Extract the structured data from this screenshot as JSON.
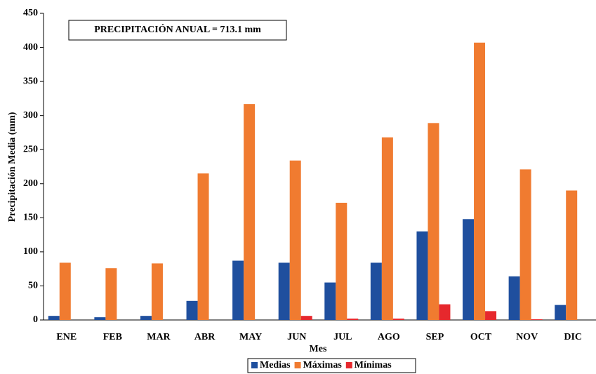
{
  "chart_data": {
    "type": "bar",
    "annotation": "PRECIPITACIÓN ANUAL = 713.1 mm",
    "x_label": "Mes",
    "y_label": "Precipitación Media (mm)",
    "categories": [
      "ENE",
      "FEB",
      "MAR",
      "ABR",
      "MAY",
      "JUN",
      "JUL",
      "AGO",
      "SEP",
      "OCT",
      "NOV",
      "DIC"
    ],
    "series": [
      {
        "name": "Medias",
        "color": "#1f4f9e",
        "values": [
          6,
          4,
          6,
          28,
          87,
          84,
          55,
          84,
          130,
          148,
          64,
          22
        ]
      },
      {
        "name": "Máximas",
        "color": "#f07b30",
        "values": [
          84,
          76,
          83,
          215,
          317,
          234,
          172,
          268,
          289,
          407,
          221,
          190
        ]
      },
      {
        "name": "Mínimas",
        "color": "#e6282d",
        "values": [
          0,
          0,
          0,
          0,
          0,
          6,
          2,
          2,
          23,
          13,
          1,
          0
        ]
      }
    ],
    "ylim": [
      0,
      450
    ],
    "yticks": [
      0,
      50,
      100,
      150,
      200,
      250,
      300,
      350,
      400,
      450
    ],
    "grid": false
  }
}
